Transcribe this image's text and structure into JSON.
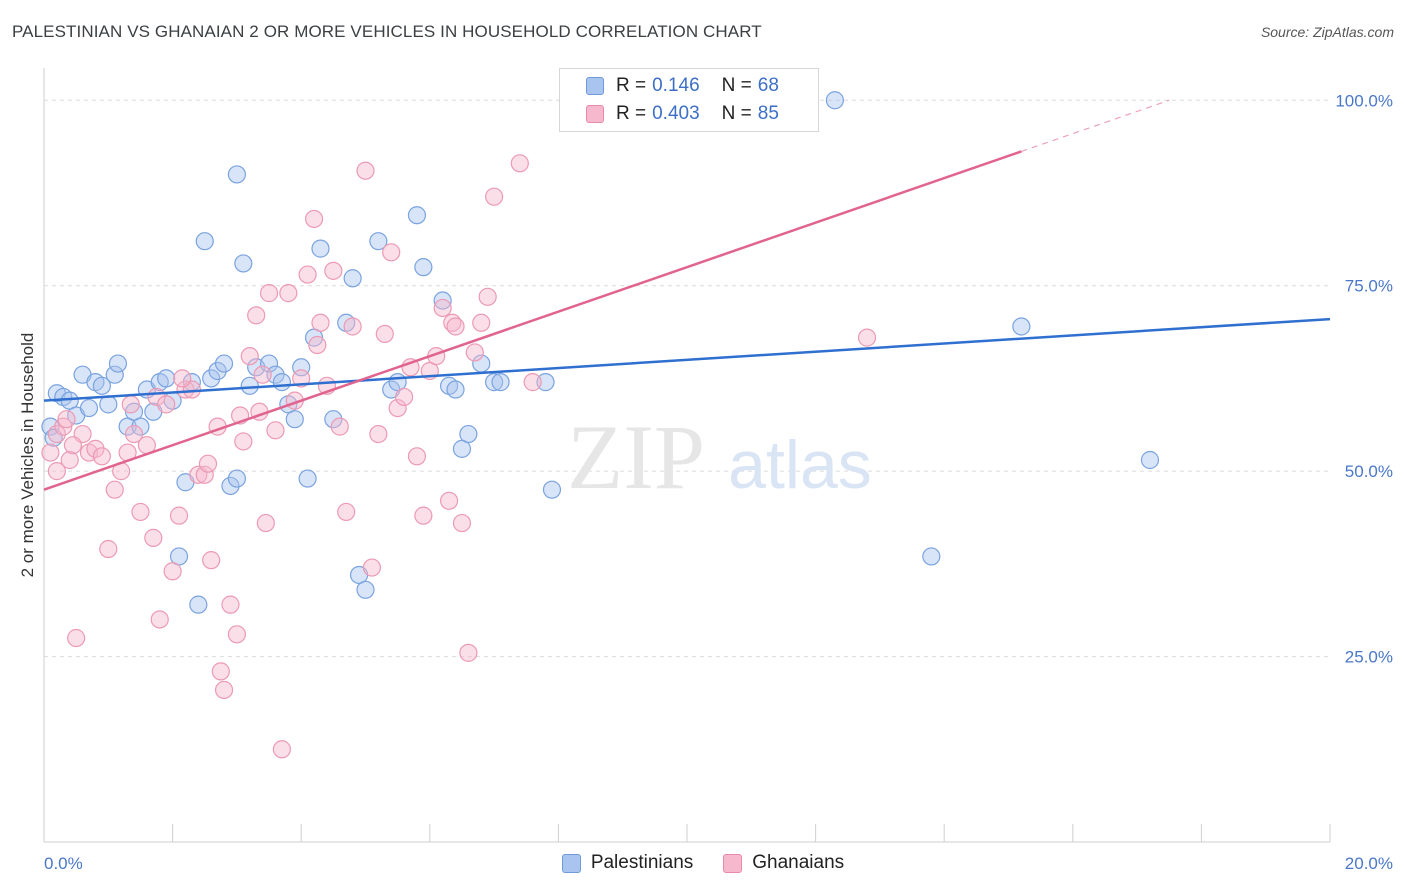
{
  "title": "PALESTINIAN VS GHANAIAN 2 OR MORE VEHICLES IN HOUSEHOLD CORRELATION CHART",
  "source": "Source: ZipAtlas.com",
  "watermark": {
    "zip": "ZIP",
    "atlas": "atlas"
  },
  "legend": {
    "rows": [
      {
        "r_label": "R =",
        "r_value": "0.146",
        "n_label": "N =",
        "n_value": "68",
        "color": "#a9c4ee",
        "border": "#6f9bdc"
      },
      {
        "r_label": "R =",
        "r_value": "0.403",
        "n_label": "N =",
        "n_value": "85",
        "color": "#f6b8cc",
        "border": "#e98aa8"
      }
    ]
  },
  "chart_data": {
    "type": "scatter",
    "ylabel": "2 or more Vehicles in Household",
    "xlim": [
      0,
      20
    ],
    "ylim": [
      0,
      103
    ],
    "x_ticks": [
      "0.0%",
      "20.0%"
    ],
    "y_ticks": [
      {
        "value": 25,
        "label": "25.0%"
      },
      {
        "value": 50,
        "label": "50.0%"
      },
      {
        "value": 75,
        "label": "75.0%"
      },
      {
        "value": 100,
        "label": "100.0%"
      }
    ],
    "series": [
      {
        "name": "Palestinians",
        "color": "#7aa3e0",
        "fill": "#a9c4ee",
        "line_color": "#2f6fcf",
        "trend": {
          "x0": 0,
          "y0": 59.5,
          "x1": 20,
          "y1": 70.5,
          "dash_from": null
        },
        "points": [
          [
            0.1,
            56.0
          ],
          [
            0.2,
            60.5
          ],
          [
            0.3,
            60.0
          ],
          [
            0.4,
            59.5
          ],
          [
            0.5,
            57.5
          ],
          [
            0.6,
            63.0
          ],
          [
            0.7,
            58.5
          ],
          [
            0.8,
            62.0
          ],
          [
            0.9,
            61.5
          ],
          [
            1.0,
            59.0
          ],
          [
            1.1,
            63.0
          ],
          [
            1.15,
            64.5
          ],
          [
            1.3,
            56.0
          ],
          [
            1.4,
            58.0
          ],
          [
            1.5,
            56.0
          ],
          [
            1.6,
            61.0
          ],
          [
            1.7,
            58.0
          ],
          [
            1.8,
            62.0
          ],
          [
            1.9,
            62.5
          ],
          [
            2.0,
            59.5
          ],
          [
            2.1,
            38.5
          ],
          [
            2.2,
            48.5
          ],
          [
            2.3,
            62.0
          ],
          [
            2.4,
            32.0
          ],
          [
            2.5,
            81.0
          ],
          [
            2.6,
            62.5
          ],
          [
            2.7,
            63.5
          ],
          [
            2.8,
            64.5
          ],
          [
            2.9,
            48.0
          ],
          [
            3.0,
            49.0
          ],
          [
            3.0,
            90.0
          ],
          [
            3.1,
            78.0
          ],
          [
            3.2,
            61.5
          ],
          [
            3.3,
            64.0
          ],
          [
            3.5,
            64.5
          ],
          [
            3.6,
            63.0
          ],
          [
            3.7,
            62.0
          ],
          [
            3.8,
            59.0
          ],
          [
            3.9,
            57.0
          ],
          [
            4.0,
            64.0
          ],
          [
            4.1,
            49.0
          ],
          [
            4.2,
            68.0
          ],
          [
            4.3,
            80.0
          ],
          [
            4.5,
            57.0
          ],
          [
            4.7,
            70.0
          ],
          [
            4.8,
            76.0
          ],
          [
            4.9,
            36.0
          ],
          [
            5.0,
            34.0
          ],
          [
            5.2,
            81.0
          ],
          [
            5.4,
            61.0
          ],
          [
            5.5,
            62.0
          ],
          [
            5.8,
            84.5
          ],
          [
            5.9,
            77.5
          ],
          [
            6.2,
            73.0
          ],
          [
            6.3,
            61.5
          ],
          [
            6.4,
            61.0
          ],
          [
            6.5,
            53.0
          ],
          [
            6.6,
            55.0
          ],
          [
            6.8,
            64.5
          ],
          [
            7.0,
            62.0
          ],
          [
            7.1,
            62.0
          ],
          [
            7.8,
            62.0
          ],
          [
            7.9,
            47.5
          ],
          [
            12.3,
            100.0
          ],
          [
            13.8,
            38.5
          ],
          [
            15.2,
            69.5
          ],
          [
            17.2,
            51.5
          ],
          [
            0.15,
            54.5
          ]
        ]
      },
      {
        "name": "Ghanaians",
        "color": "#ec9ab4",
        "fill": "#f6b8cc",
        "line_color": "#e0648f",
        "trend": {
          "x0": 0,
          "y0": 47.5,
          "x1": 17.5,
          "y1": 100.0,
          "dash_from": 15.2
        },
        "points": [
          [
            0.1,
            52.5
          ],
          [
            0.2,
            55.0
          ],
          [
            0.3,
            56.0
          ],
          [
            0.4,
            51.5
          ],
          [
            0.5,
            27.5
          ],
          [
            0.6,
            55.0
          ],
          [
            0.7,
            52.5
          ],
          [
            0.8,
            53.0
          ],
          [
            0.9,
            52.0
          ],
          [
            1.0,
            39.5
          ],
          [
            1.1,
            47.5
          ],
          [
            1.2,
            50.0
          ],
          [
            1.3,
            52.5
          ],
          [
            1.35,
            59.0
          ],
          [
            1.4,
            55.0
          ],
          [
            1.5,
            44.5
          ],
          [
            1.6,
            53.5
          ],
          [
            1.7,
            41.0
          ],
          [
            1.75,
            60.0
          ],
          [
            1.8,
            30.0
          ],
          [
            1.9,
            59.0
          ],
          [
            2.0,
            36.5
          ],
          [
            2.1,
            44.0
          ],
          [
            2.2,
            61.0
          ],
          [
            2.3,
            61.0
          ],
          [
            2.4,
            49.5
          ],
          [
            2.5,
            49.5
          ],
          [
            2.55,
            51.0
          ],
          [
            2.6,
            38.0
          ],
          [
            2.7,
            56.0
          ],
          [
            2.75,
            23.0
          ],
          [
            2.8,
            20.5
          ],
          [
            2.9,
            32.0
          ],
          [
            3.0,
            28.0
          ],
          [
            3.05,
            57.5
          ],
          [
            3.1,
            54.0
          ],
          [
            3.2,
            65.5
          ],
          [
            3.3,
            71.0
          ],
          [
            3.4,
            63.0
          ],
          [
            3.45,
            43.0
          ],
          [
            3.5,
            74.0
          ],
          [
            3.6,
            55.5
          ],
          [
            3.7,
            12.5
          ],
          [
            3.8,
            74.0
          ],
          [
            3.9,
            59.5
          ],
          [
            4.0,
            62.5
          ],
          [
            4.1,
            76.5
          ],
          [
            4.2,
            84.0
          ],
          [
            4.3,
            70.0
          ],
          [
            4.4,
            61.5
          ],
          [
            4.5,
            77.0
          ],
          [
            4.6,
            56.0
          ],
          [
            4.7,
            44.5
          ],
          [
            4.8,
            69.5
          ],
          [
            5.0,
            90.5
          ],
          [
            5.1,
            37.0
          ],
          [
            5.2,
            55.0
          ],
          [
            5.3,
            68.5
          ],
          [
            5.4,
            79.5
          ],
          [
            5.5,
            58.5
          ],
          [
            5.6,
            60.0
          ],
          [
            5.7,
            64.0
          ],
          [
            5.8,
            52.0
          ],
          [
            5.9,
            44.0
          ],
          [
            6.0,
            63.5
          ],
          [
            6.1,
            65.5
          ],
          [
            6.2,
            72.0
          ],
          [
            6.3,
            46.0
          ],
          [
            6.35,
            70.0
          ],
          [
            6.4,
            69.5
          ],
          [
            6.5,
            43.0
          ],
          [
            6.6,
            25.5
          ],
          [
            6.7,
            66.0
          ],
          [
            6.8,
            70.0
          ],
          [
            6.9,
            73.5
          ],
          [
            7.0,
            87.0
          ],
          [
            7.4,
            91.5
          ],
          [
            7.6,
            62.0
          ],
          [
            12.8,
            68.0
          ],
          [
            0.2,
            50.0
          ],
          [
            0.35,
            57.0
          ],
          [
            0.45,
            53.5
          ],
          [
            2.15,
            62.5
          ],
          [
            3.35,
            58.0
          ],
          [
            4.25,
            67.0
          ]
        ]
      }
    ]
  }
}
